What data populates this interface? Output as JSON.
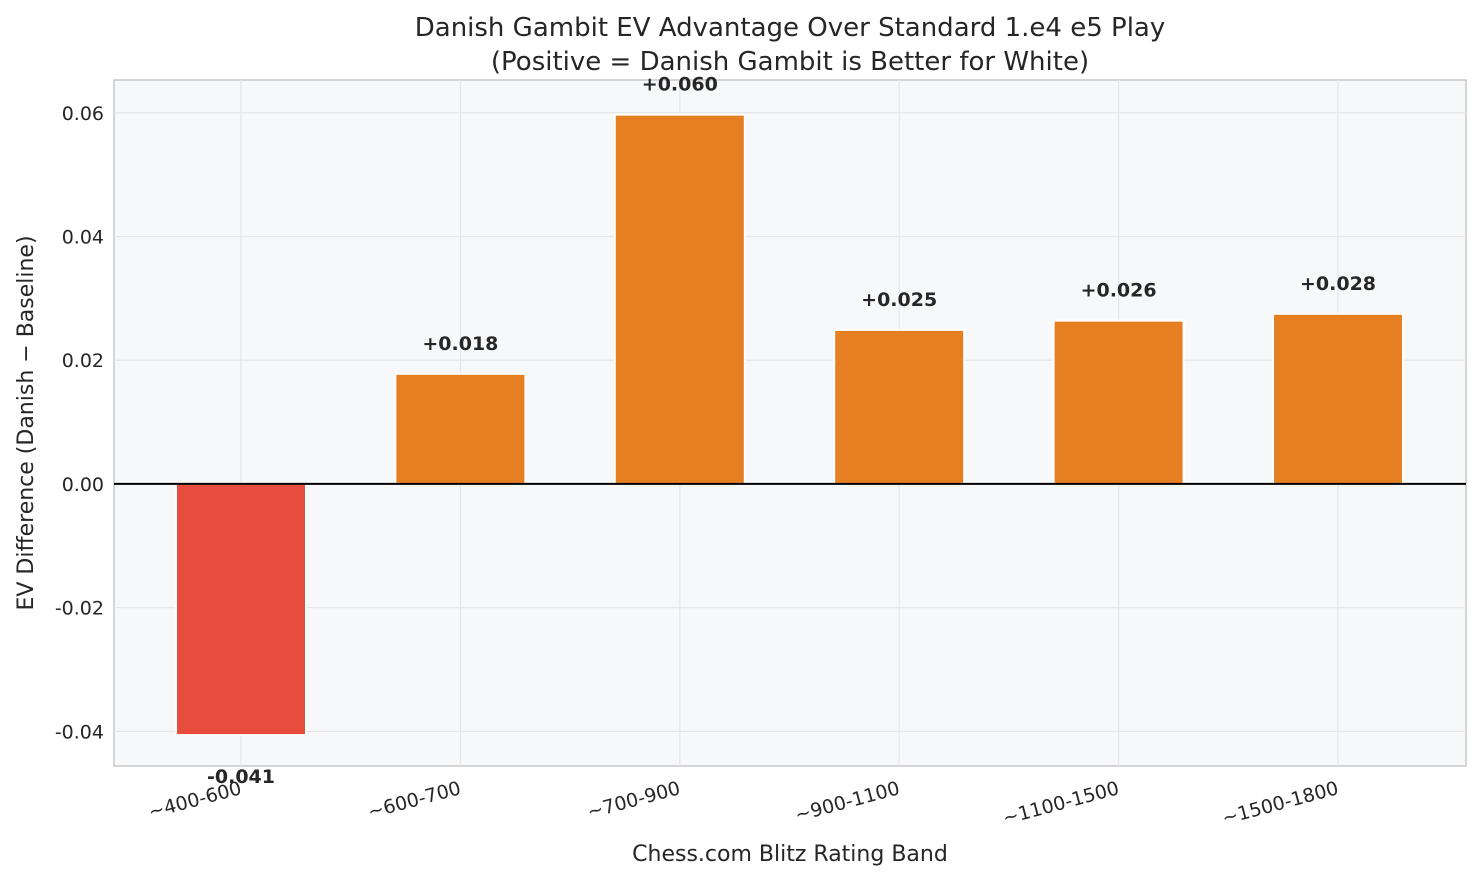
{
  "chart_data": {
    "type": "bar",
    "title": "Danish Gambit EV Advantage Over Standard 1.e4 e5 Play",
    "subtitle": "(Positive = Danish Gambit is Better for White)",
    "x_label": "Chess.com Blitz Rating Band",
    "y_label": "EV Difference (Danish − Baseline)",
    "categories": [
      "~400-600",
      "~600-700",
      "~700-900",
      "~900-1100",
      "~1100-1500",
      "~1500-1800"
    ],
    "values": [
      -0.0406,
      0.0178,
      0.0597,
      0.0249,
      0.0264,
      0.0275
    ],
    "value_labels": [
      "-0.041",
      "+0.018",
      "+0.060",
      "+0.025",
      "+0.026",
      "+0.028"
    ],
    "colors": [
      "#e74c3c",
      "#e67e22",
      "#e67e22",
      "#e67e22",
      "#e67e22",
      "#e67e22"
    ],
    "ylim": [
      -0.0456,
      0.0653
    ],
    "yticks": [
      {
        "value": -0.04,
        "label": "-0.04"
      },
      {
        "value": -0.02,
        "label": "-0.02"
      },
      {
        "value": 0,
        "label": "0.00"
      },
      {
        "value": 0.02,
        "label": "0.02"
      },
      {
        "value": 0.04,
        "label": "0.04"
      },
      {
        "value": 0.06,
        "label": "0.06"
      }
    ],
    "grid": true
  }
}
